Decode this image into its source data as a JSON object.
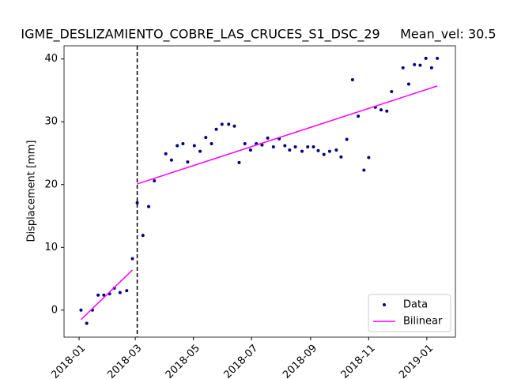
{
  "chart_data": {
    "type": "scatter",
    "title": "IGME_DESLIZAMIENTO_COBRE_LAS_CRUCES_S1_DSC_29     Mean_vel: 30.5",
    "y_label": "Displacement [mm]",
    "xlim": [
      -15.8,
      395
    ],
    "ylim": [
      -4.3,
      42.1
    ],
    "xticks": [
      {
        "value": 0,
        "label": "2018-01"
      },
      {
        "value": 59,
        "label": "2018-03"
      },
      {
        "value": 120,
        "label": "2018-05"
      },
      {
        "value": 181,
        "label": "2018-07"
      },
      {
        "value": 243,
        "label": "2018-09"
      },
      {
        "value": 304,
        "label": "2018-11"
      },
      {
        "value": 365,
        "label": "2019-01"
      }
    ],
    "yticks": [
      0,
      10,
      20,
      30,
      40
    ],
    "breakpoint": 61,
    "legend": "lower right",
    "series": [
      {
        "name": "Data",
        "color": "#000080",
        "x": [
          2,
          8,
          14,
          20,
          26,
          32,
          37,
          43,
          50,
          56,
          61,
          67,
          73,
          79,
          91,
          97,
          103,
          109,
          114,
          121,
          127,
          133,
          139,
          144,
          150,
          157,
          163,
          168,
          174,
          180,
          186,
          192,
          198,
          204,
          210,
          216,
          221,
          227,
          234,
          240,
          246,
          251,
          257,
          263,
          270,
          275,
          281,
          287,
          293,
          299,
          304,
          311,
          317,
          323,
          328,
          340,
          346,
          352,
          358,
          364,
          370,
          376
        ],
        "values": [
          0,
          -2.1,
          0,
          2.4,
          2.4,
          2.6,
          3.5,
          2.8,
          3.1,
          8.2,
          17.1,
          11.9,
          16.5,
          20.6,
          24.9,
          23.9,
          26.2,
          26.5,
          23.6,
          26.2,
          25.3,
          27.5,
          26.5,
          28.8,
          29.6,
          29.6,
          29.3,
          23.5,
          26.5,
          25.5,
          26.5,
          26.3,
          27.4,
          26.0,
          27.3,
          26.2,
          25.5,
          26.0,
          25.3,
          26.0,
          26.0,
          25.4,
          24.8,
          25.3,
          25.5,
          24.4,
          27.2,
          36.7,
          30.9,
          22.3,
          24.3,
          32.3,
          31.9,
          31.7,
          34.8,
          38.6,
          36.0,
          39.1,
          39.0,
          40.1,
          38.6,
          40.1
        ]
      },
      {
        "name": "Bilinear",
        "color": "#ff00ff",
        "segments": [
          {
            "x": [
              2,
              56
            ],
            "values": [
              -1.5,
              6.4
            ]
          },
          {
            "x": [
              61,
              376
            ],
            "values": [
              20.1,
              35.7
            ]
          }
        ]
      }
    ]
  }
}
